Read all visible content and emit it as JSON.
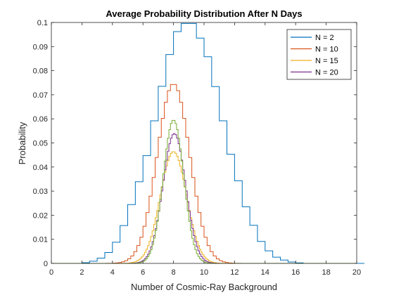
{
  "chart_data": {
    "type": "line",
    "step": true,
    "title": "Average Probability Distribution After N Days",
    "xlabel": "Number of Cosmic-Ray Background",
    "ylabel": "Probability",
    "xlim": [
      0,
      20
    ],
    "ylim": [
      0,
      0.1
    ],
    "xticks": [
      0,
      2,
      4,
      6,
      8,
      10,
      12,
      14,
      16,
      18,
      20
    ],
    "yticks": [
      0,
      0.01,
      0.02,
      0.03,
      0.04,
      0.05,
      0.06,
      0.07,
      0.08,
      0.09,
      0.1
    ],
    "xtick_labels": [
      "0",
      "2",
      "4",
      "6",
      "8",
      "10",
      "12",
      "14",
      "16",
      "18",
      "20"
    ],
    "ytick_labels": [
      "0",
      "0.01",
      "0.02",
      "0.03",
      "0.04",
      "0.05",
      "0.06",
      "0.07",
      "0.08",
      "0.09",
      "0.1"
    ],
    "grid": false,
    "legend_position": "top-right",
    "series": [
      {
        "name": "N = 2",
        "color": "#0072BD",
        "bin_width": 0.5,
        "mean": 8,
        "std": 2.0,
        "x_start": 0,
        "values": [
          0,
          0,
          0,
          0,
          0.0003,
          0.0009,
          0.0022,
          0.0045,
          0.0088,
          0.0157,
          0.0244,
          0.0339,
          0.0447,
          0.0592,
          0.0735,
          0.0867,
          0.0962,
          0.0996,
          0.0996,
          0.0935,
          0.0858,
          0.0734,
          0.0592,
          0.0453,
          0.0343,
          0.0235,
          0.0158,
          0.0091,
          0.0052,
          0.0026,
          0.0014,
          0.0006,
          0.0002,
          0,
          0,
          0,
          0,
          0,
          0,
          0,
          0
        ]
      },
      {
        "name": "N = 10",
        "color": "#D95319",
        "bin_width": 0.2,
        "mean": 8,
        "std": 1.07,
        "x_start": 0
      },
      {
        "name": "N = 15",
        "color": "#EDB120",
        "bin_width": 0.1,
        "mean": 8,
        "std": 0.86,
        "x_start": 0
      },
      {
        "name": "N = 20",
        "color": "#7E2F8E",
        "bin_width": 0.1,
        "mean": 8.05,
        "std": 0.74,
        "x_start": 0
      },
      {
        "name": "",
        "color": "#77AC30",
        "bin_width": 0.1,
        "mean": 8.0,
        "std": 0.67,
        "x_start": 0
      }
    ]
  }
}
